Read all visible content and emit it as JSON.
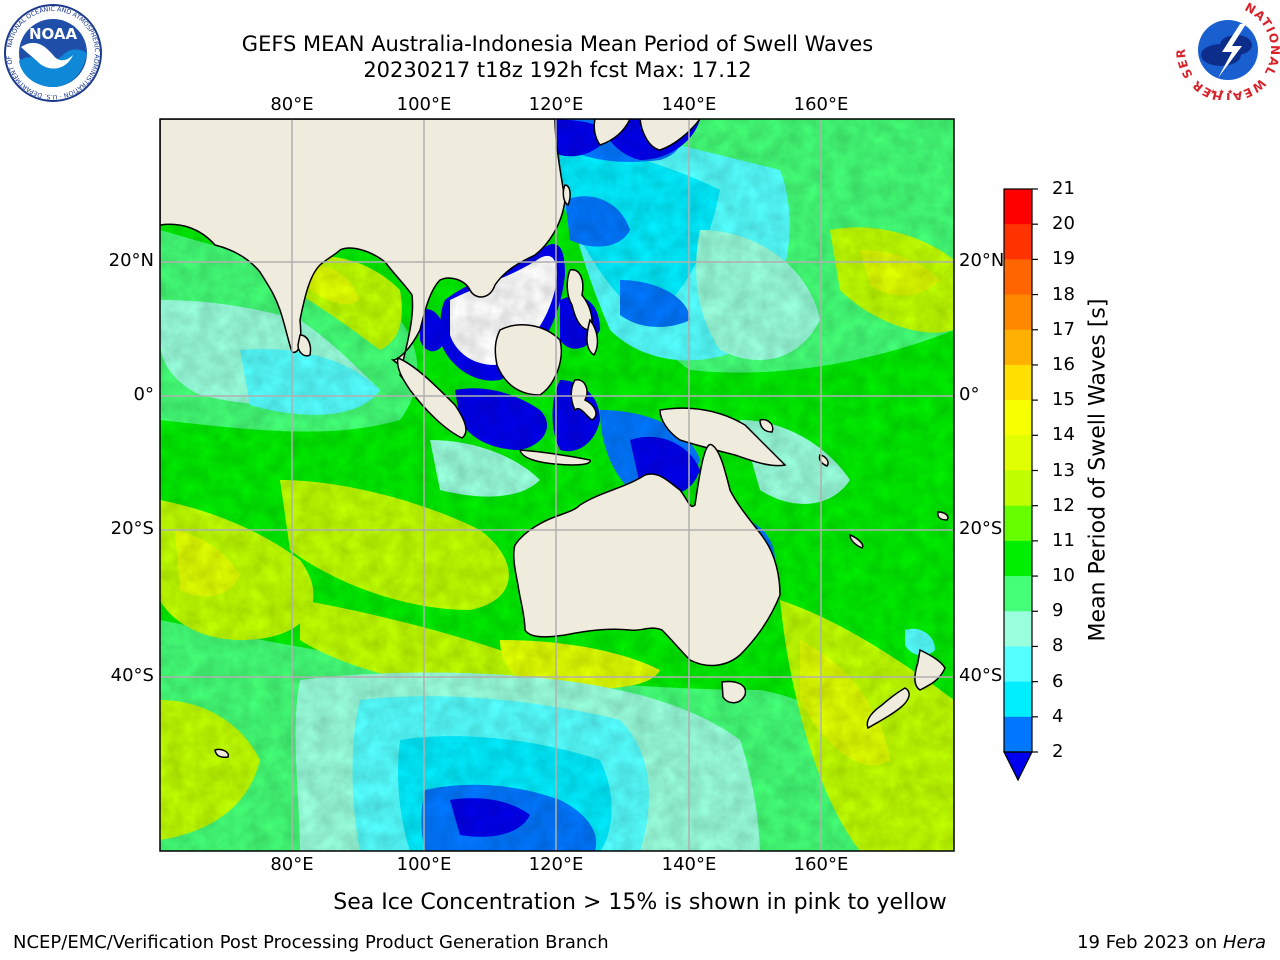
{
  "header": {
    "title_line1": "GEFS MEAN Australia-Indonesia Mean Period of Swell Waves",
    "title_line2": "20230217 t18z 192h fcst   Max: 17.12"
  },
  "logos": {
    "left": {
      "text": "NOAA",
      "ring_text": "NATIONAL OCEANIC AND ATMOSPHERIC ADMINISTRATION · U.S. DEPARTMENT OF COMMERCE"
    },
    "right": {
      "ring_text": "NATIONAL WEATHER SERVICE"
    }
  },
  "map": {
    "lon_labels": [
      "80°E",
      "100°E",
      "120°E",
      "140°E",
      "160°E"
    ],
    "lat_labels": [
      "20°N",
      "0°",
      "20°S",
      "40°S"
    ],
    "grid": true,
    "colors": {
      "land": "#efecdd",
      "ice_free_white": "#ffffff",
      "grid": "#b0b0b0"
    }
  },
  "colorbar": {
    "label": "Mean Period of Swell Waves [s]",
    "ticks": [
      "21",
      "20",
      "19",
      "18",
      "17",
      "16",
      "15",
      "14",
      "13",
      "12",
      "11",
      "10",
      "9",
      "8",
      "6",
      "4",
      "2"
    ],
    "bands": [
      {
        "range": "20-21",
        "color": "#ff0000"
      },
      {
        "range": "19-20",
        "color": "#ff3300"
      },
      {
        "range": "18-19",
        "color": "#ff6600"
      },
      {
        "range": "17-18",
        "color": "#ff8800"
      },
      {
        "range": "16-17",
        "color": "#ffb000"
      },
      {
        "range": "15-16",
        "color": "#ffe000"
      },
      {
        "range": "14-15",
        "color": "#f7ff00"
      },
      {
        "range": "13-14",
        "color": "#e0ff00"
      },
      {
        "range": "12-13",
        "color": "#c0ff00"
      },
      {
        "range": "11-12",
        "color": "#66ff00"
      },
      {
        "range": "10-11",
        "color": "#00ee00"
      },
      {
        "range": "9-10",
        "color": "#44ff77"
      },
      {
        "range": "8-9",
        "color": "#99ffdd"
      },
      {
        "range": "6-8",
        "color": "#55ffff"
      },
      {
        "range": "4-6",
        "color": "#00eeff"
      },
      {
        "range": "2-4",
        "color": "#0077ff"
      }
    ],
    "extend_below_color": "#0000ee"
  },
  "note": "Sea Ice Concentration > 15% is shown in pink to yellow",
  "footer": {
    "left": "NCEP/EMC/Verification Post Processing Product Generation Branch",
    "right_prefix": "19 Feb 2023 on ",
    "right_host": "Hera"
  }
}
